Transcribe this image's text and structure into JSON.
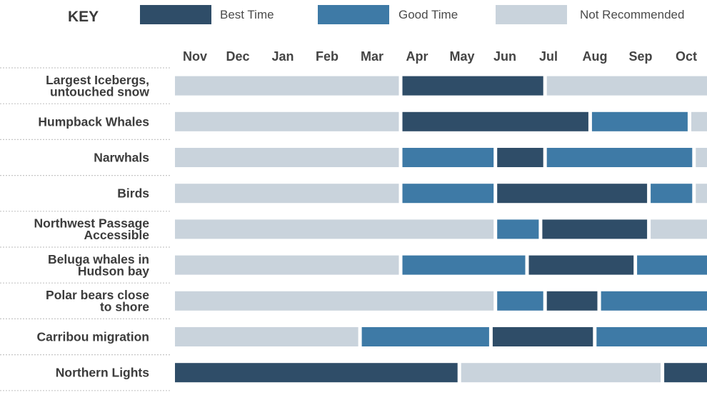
{
  "chart_data": {
    "type": "timeline",
    "legend": {
      "title": "KEY",
      "placement": "top",
      "items": [
        {
          "key": "best",
          "label": "Best Time",
          "color": "#2f4d68"
        },
        {
          "key": "good",
          "label": "Good Time",
          "color": "#3e7aa6"
        },
        {
          "key": "not",
          "label": "Not Recommended",
          "color": "#c9d3dc"
        }
      ]
    },
    "months": [
      "Nov",
      "Dec",
      "Jan",
      "Feb",
      "Mar",
      "Apr",
      "May",
      "Jun",
      "Jul",
      "Aug",
      "Sep",
      "Oct"
    ],
    "rows": [
      {
        "label_lines": [
          "Largest Icebergs,",
          "untouched snow"
        ],
        "segments": [
          {
            "start": 0,
            "end": 5,
            "status": "not"
          },
          {
            "start": 5,
            "end": 8.2,
            "status": "best"
          },
          {
            "start": 8.2,
            "end": 12,
            "status": "not"
          }
        ]
      },
      {
        "label_lines": [
          "Humpback Whales"
        ],
        "segments": [
          {
            "start": 0,
            "end": 5,
            "status": "not"
          },
          {
            "start": 5,
            "end": 9.2,
            "status": "best"
          },
          {
            "start": 9.2,
            "end": 11.4,
            "status": "good"
          },
          {
            "start": 11.4,
            "end": 12,
            "status": "not"
          }
        ]
      },
      {
        "label_lines": [
          "Narwhals"
        ],
        "segments": [
          {
            "start": 0,
            "end": 5,
            "status": "not"
          },
          {
            "start": 5,
            "end": 7.1,
            "status": "good"
          },
          {
            "start": 7.1,
            "end": 8.2,
            "status": "best"
          },
          {
            "start": 8.2,
            "end": 11.5,
            "status": "good"
          },
          {
            "start": 11.5,
            "end": 12,
            "status": "not"
          }
        ]
      },
      {
        "label_lines": [
          "Birds"
        ],
        "segments": [
          {
            "start": 0,
            "end": 5,
            "status": "not"
          },
          {
            "start": 5,
            "end": 7.1,
            "status": "good"
          },
          {
            "start": 7.1,
            "end": 10.5,
            "status": "best"
          },
          {
            "start": 10.5,
            "end": 11.5,
            "status": "good"
          },
          {
            "start": 11.5,
            "end": 12,
            "status": "not"
          }
        ]
      },
      {
        "label_lines": [
          "Northwest Passage",
          "Accessible"
        ],
        "segments": [
          {
            "start": 0,
            "end": 7.1,
            "status": "not"
          },
          {
            "start": 7.1,
            "end": 8.1,
            "status": "good"
          },
          {
            "start": 8.1,
            "end": 10.5,
            "status": "best"
          },
          {
            "start": 10.5,
            "end": 12,
            "status": "not"
          }
        ]
      },
      {
        "label_lines": [
          "Beluga whales in",
          "Hudson bay"
        ],
        "segments": [
          {
            "start": 0,
            "end": 5,
            "status": "not"
          },
          {
            "start": 5,
            "end": 7.8,
            "status": "good"
          },
          {
            "start": 7.8,
            "end": 10.2,
            "status": "best"
          },
          {
            "start": 10.2,
            "end": 12,
            "status": "good"
          }
        ]
      },
      {
        "label_lines": [
          "Polar bears close",
          "to shore"
        ],
        "segments": [
          {
            "start": 0,
            "end": 7.1,
            "status": "not"
          },
          {
            "start": 7.1,
            "end": 8.2,
            "status": "good"
          },
          {
            "start": 8.2,
            "end": 9.4,
            "status": "best"
          },
          {
            "start": 9.4,
            "end": 12,
            "status": "good"
          }
        ]
      },
      {
        "label_lines": [
          "Carribou migration"
        ],
        "segments": [
          {
            "start": 0,
            "end": 4.1,
            "status": "not"
          },
          {
            "start": 4.1,
            "end": 7.0,
            "status": "good"
          },
          {
            "start": 7.0,
            "end": 9.3,
            "status": "best"
          },
          {
            "start": 9.3,
            "end": 12,
            "status": "good"
          }
        ]
      },
      {
        "label_lines": [
          "Northern Lights"
        ],
        "segments": [
          {
            "start": 0,
            "end": 6.3,
            "status": "best"
          },
          {
            "start": 6.3,
            "end": 10.8,
            "status": "not"
          },
          {
            "start": 10.8,
            "end": 12,
            "status": "best"
          }
        ]
      }
    ]
  }
}
